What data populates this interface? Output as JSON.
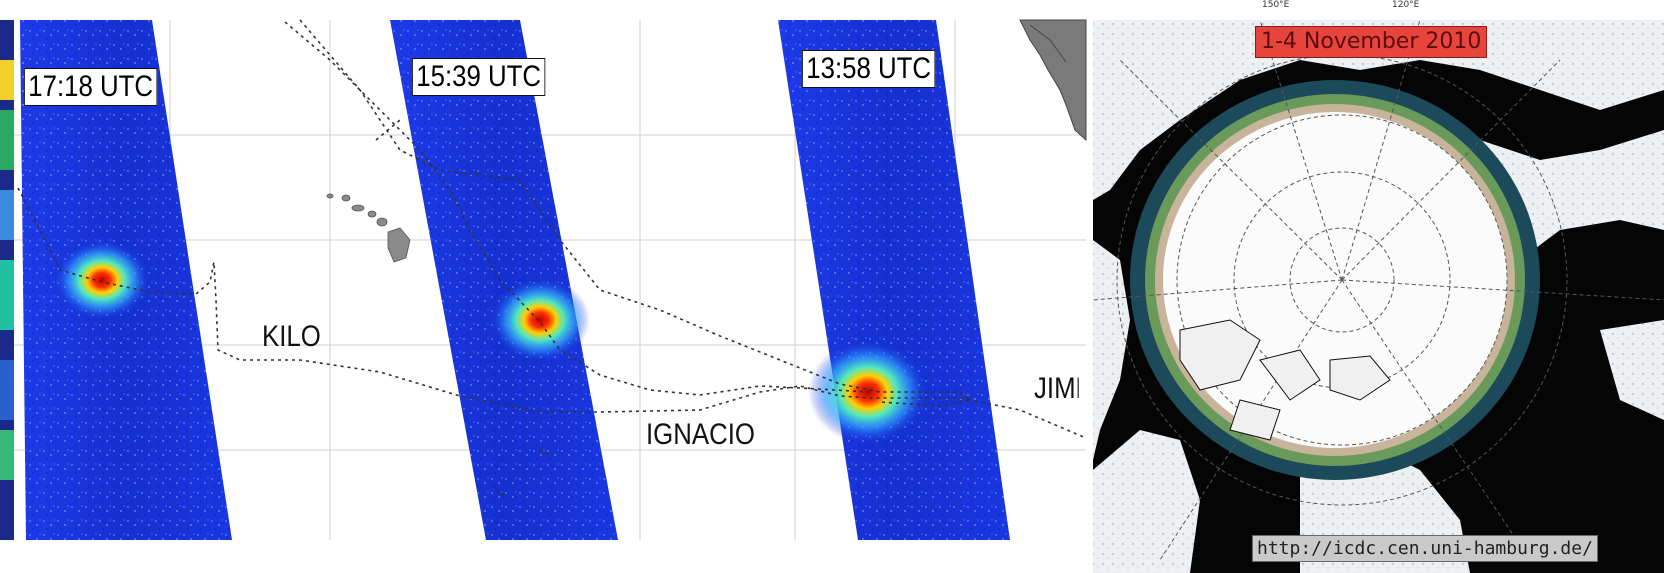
{
  "left_panel": {
    "swaths": [
      {
        "time_label": "17:18 UTC"
      },
      {
        "time_label": "15:39 UTC"
      },
      {
        "time_label": "13:58 UTC"
      }
    ],
    "storm_names": {
      "kilo": "KILO",
      "ignacio": "IGNACIO",
      "jimena": "JIME"
    }
  },
  "right_panel": {
    "date_label": "1-4 November 2010",
    "source_url": "http://icdc.cen.uni-hamburg.de/",
    "longitude_labels": [
      "150°E",
      "120°E"
    ]
  },
  "colors": {
    "swath_blue": "#1730d8",
    "storm_core": "#d01010",
    "ocean_black": "#050505",
    "ice_white": "#f4f6f8",
    "date_banner": "#e8443e"
  }
}
